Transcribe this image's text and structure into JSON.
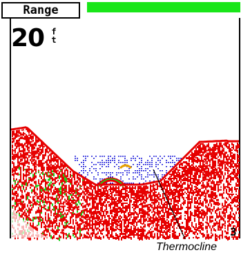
{
  "header": {
    "range_label": "Range",
    "range_fill_fraction": 1.0,
    "range_color": "#19e619"
  },
  "depth": {
    "value": "20",
    "unit": "ft"
  },
  "scale": {
    "bottom_digit": "3"
  },
  "annotation": {
    "caption": "Thermocline"
  },
  "colors": {
    "return_strong": "#e60000",
    "return_medium": "#19d219",
    "return_weak": "#e60000",
    "thermocline": "#1a1ad8",
    "background": "#ffffff"
  }
}
